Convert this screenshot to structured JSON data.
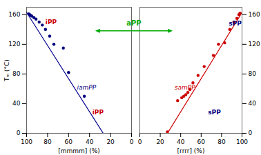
{
  "chart_data": [
    {
      "type": "line",
      "xlabel": "[mmmm] (%)",
      "ylabel": "Tₘ (°C)",
      "xlim": [
        100,
        0
      ],
      "xticks": [
        100,
        80,
        60,
        40,
        20,
        0
      ],
      "ylim": [
        0,
        170
      ],
      "yticks": [
        0,
        40,
        80,
        120,
        160
      ],
      "grid": false,
      "series": [
        {
          "type": "line",
          "color": "#00008B",
          "x": [
            100,
            27
          ],
          "values": [
            163,
            0
          ]
        },
        {
          "type": "scatter",
          "color": "#000080",
          "x": [
            98,
            97,
            96,
            95,
            93,
            91,
            88,
            85,
            82,
            78,
            74,
            65,
            60,
            45
          ],
          "values": [
            161,
            160,
            159,
            158,
            156,
            154,
            150,
            146,
            140,
            131,
            120,
            115,
            82,
            50
          ]
        }
      ],
      "annotations": [
        {
          "text": "iPP",
          "x": 82,
          "y": 150,
          "color": "#CC0000"
        },
        {
          "text": "iPP",
          "x": 32,
          "y": 28,
          "color": "#CC0000"
        },
        {
          "text": "iamPP",
          "x": 52,
          "y": 62,
          "color": "#000080"
        },
        {
          "text": "aPP",
          "color": "#00AA00"
        }
      ]
    },
    {
      "type": "line",
      "xlabel": "[rrrr] (%)",
      "xlim": [
        0,
        100
      ],
      "xticks": [
        0,
        20,
        40,
        60,
        80,
        100
      ],
      "ylim": [
        0,
        170
      ],
      "yticks": [
        0,
        40,
        80,
        120,
        160
      ],
      "grid": false,
      "series": [
        {
          "type": "line",
          "color": "#CC0000",
          "x": [
            27,
            100
          ],
          "values": [
            0,
            163
          ]
        },
        {
          "type": "scatter",
          "color": "#CC0000",
          "x": [
            27,
            37,
            41,
            43,
            45,
            47,
            49,
            52,
            57,
            63,
            72,
            77,
            83,
            88,
            92,
            95,
            97,
            98
          ],
          "values": [
            2,
            44,
            48,
            50,
            52,
            55,
            59,
            68,
            78,
            90,
            105,
            120,
            122,
            140,
            150,
            155,
            160,
            162
          ]
        }
      ],
      "annotations": [
        {
          "text": "sPP",
          "x": 87,
          "y": 148,
          "color": "#000080"
        },
        {
          "text": "sPP",
          "x": 73,
          "y": 28,
          "color": "#000080"
        },
        {
          "text": "samPP",
          "x": 34,
          "y": 62,
          "color": "#CC0000"
        }
      ]
    }
  ]
}
